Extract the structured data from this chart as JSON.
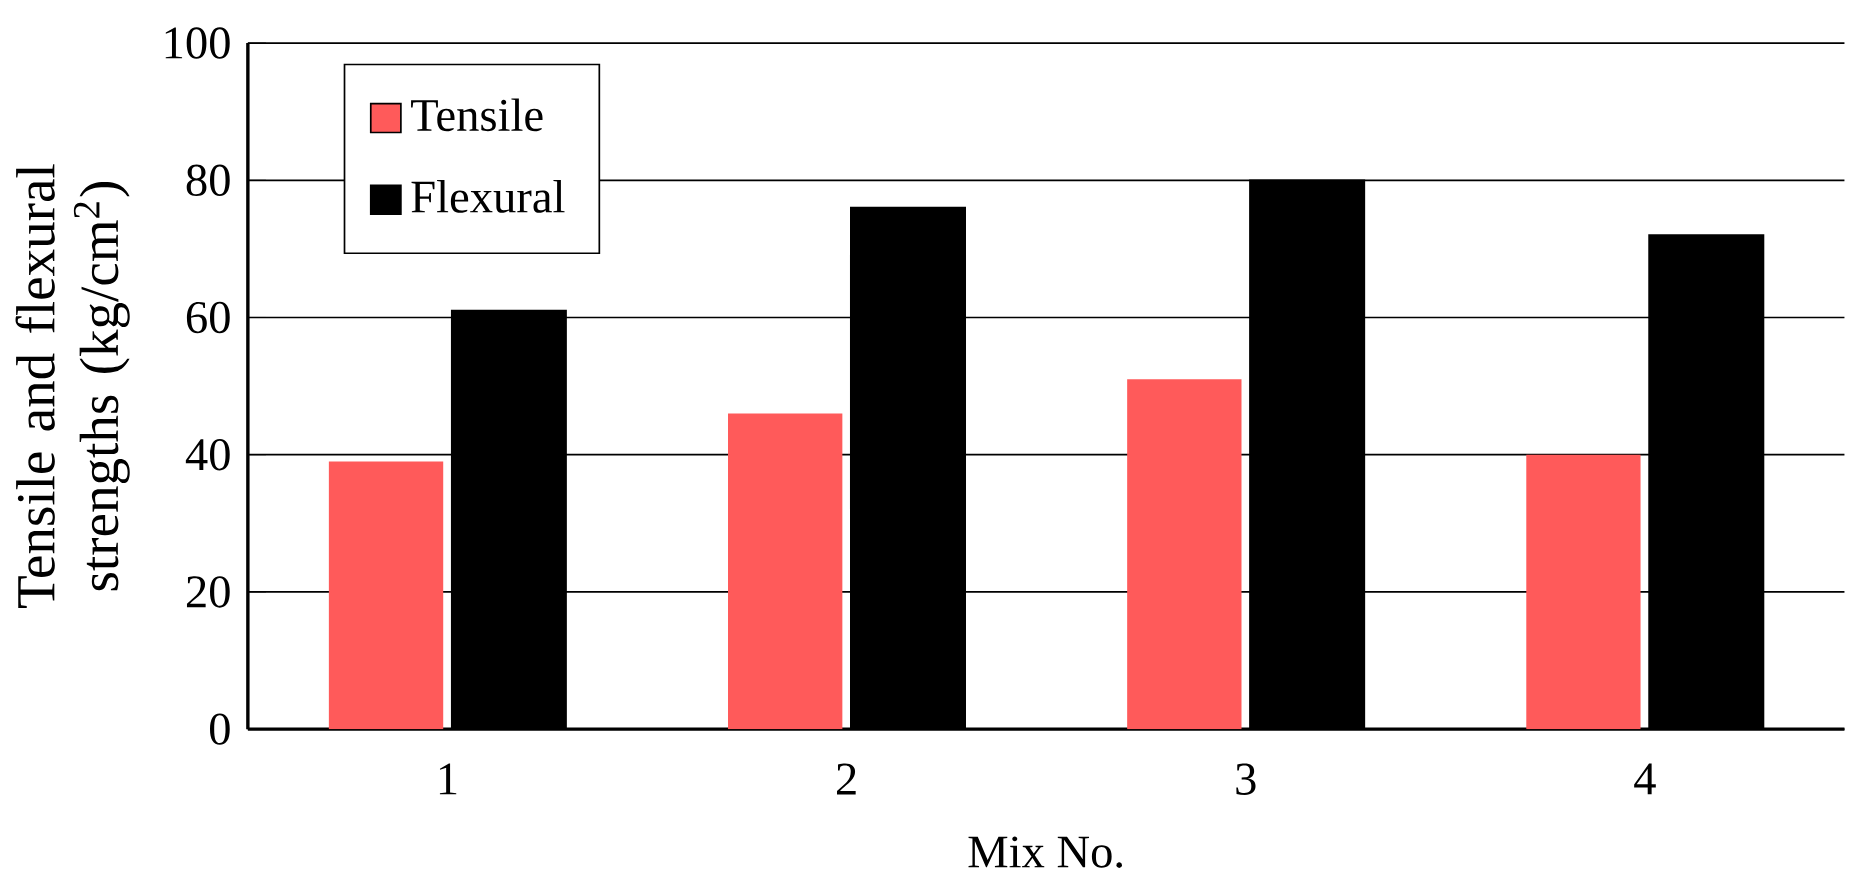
{
  "chart_data": {
    "type": "bar",
    "xlabel": "Mix No.",
    "ylabel": "Tensile and flexural strengths (kg/cm$^{2}$)",
    "categories": [
      "1",
      "2",
      "3",
      "4"
    ],
    "series": [
      {
        "name": "Tensile",
        "color": "#ff5a5a",
        "values": [
          39,
          46,
          51,
          40
        ]
      },
      {
        "name": "Flexural",
        "color": "#000000",
        "values": [
          61,
          76,
          80,
          72
        ]
      }
    ],
    "ylim": [
      0,
      100
    ],
    "yticks": [
      0,
      20,
      40,
      60,
      80,
      100
    ],
    "grid": "y",
    "legend": "top left"
  }
}
